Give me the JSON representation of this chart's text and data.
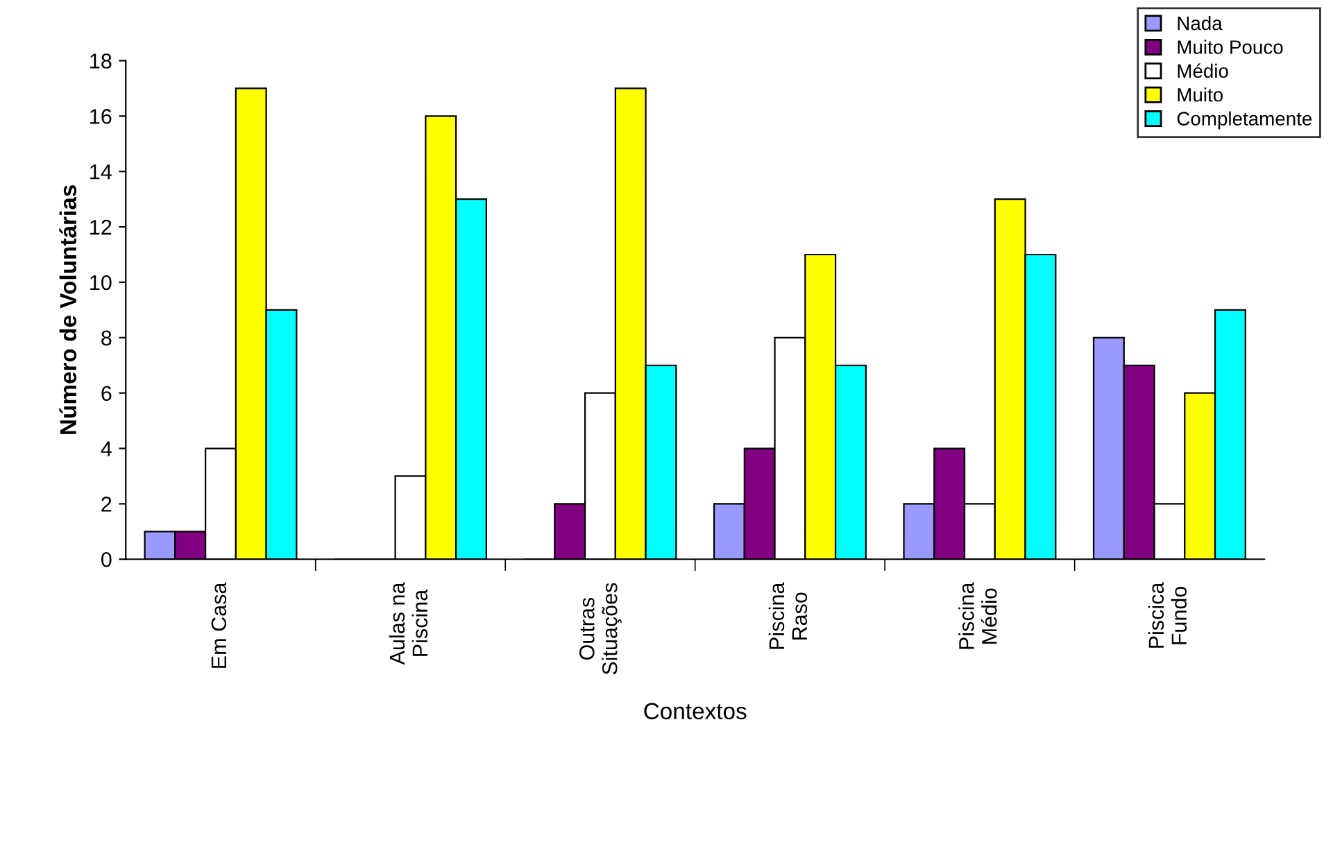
{
  "chart_data": {
    "type": "bar",
    "xlabel": "Contextos",
    "ylabel": "Número de Voluntárias",
    "categories": [
      "Em Casa",
      "Aulas na\nPiscina",
      "Outras\nSituações",
      "Piscina\nRaso",
      "Piscina\nMédio",
      "Piscica\nFundo"
    ],
    "series": [
      {
        "name": "Nada",
        "color": "#9999ff",
        "values": [
          1,
          0,
          0,
          2,
          2,
          8
        ]
      },
      {
        "name": "Muito Pouco",
        "color": "#800080",
        "values": [
          1,
          0,
          2,
          4,
          4,
          7
        ]
      },
      {
        "name": "Médio",
        "color": "#ffffff",
        "values": [
          4,
          3,
          6,
          8,
          2,
          2
        ]
      },
      {
        "name": "Muito",
        "color": "#ffff00",
        "values": [
          17,
          16,
          17,
          11,
          13,
          6
        ]
      },
      {
        "name": "Completamente",
        "color": "#00ffff",
        "values": [
          9,
          13,
          7,
          7,
          11,
          9
        ]
      }
    ],
    "ylim": [
      0,
      18
    ],
    "yticks": [
      0,
      2,
      4,
      6,
      8,
      10,
      12,
      14,
      16,
      18
    ],
    "grid": false,
    "legend": "top right"
  }
}
